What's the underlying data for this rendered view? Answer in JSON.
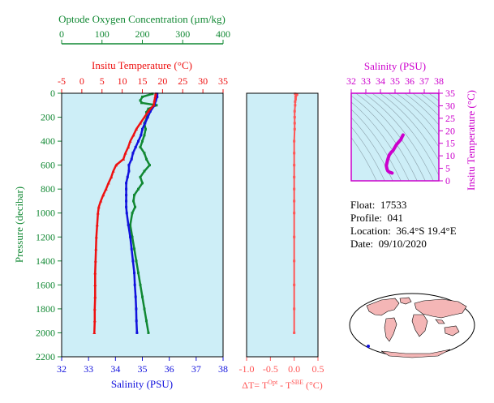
{
  "colors": {
    "temperature": "#ee1111",
    "salinity": "#1111dd",
    "oxygen": "#118833",
    "salinity_panel": "#cc00cc",
    "dt_panel": "#ff5555",
    "pressure_axis": "#118833",
    "panel_bg": "#cdeef7",
    "land": "#f4b6b6",
    "ocean": "#ffffff"
  },
  "main_panel": {
    "oxygen_axis": {
      "title": "Optode Oxygen Concentration (µm/kg)",
      "ticks": [
        "0",
        "100",
        "200",
        "300",
        "400"
      ]
    },
    "temperature_axis": {
      "title": "Insitu Temperature (°C)",
      "ticks": [
        "-5",
        "0",
        "5",
        "10",
        "15",
        "20",
        "25",
        "30",
        "35"
      ]
    },
    "salinity_axis": {
      "title": "Salinity (PSU)",
      "ticks": [
        "32",
        "33",
        "34",
        "35",
        "36",
        "37",
        "38"
      ]
    },
    "pressure_axis": {
      "title": "Pressure (decibar)",
      "ticks": [
        "0",
        "200",
        "400",
        "600",
        "800",
        "1000",
        "1200",
        "1400",
        "1600",
        "1800",
        "2000",
        "2200"
      ]
    }
  },
  "dt_panel": {
    "xlabel": "ΔT= T",
    "xlabel_sup1": "Opt",
    "xlabel_mid": " - T",
    "xlabel_sup2": "SBE",
    "xlabel_unit": " (°C)",
    "ticks": [
      "-1.0",
      "-0.5",
      "0.0",
      "0.5"
    ]
  },
  "ts_panel": {
    "title": "Salinity (PSU)",
    "x_ticks": [
      "32",
      "33",
      "34",
      "35",
      "36",
      "37",
      "38"
    ],
    "y_ticks": [
      "0",
      "5",
      "10",
      "15",
      "20",
      "25",
      "30",
      "35"
    ],
    "ylabel": "Insitu Temperature (°C)"
  },
  "info": {
    "float_label": "Float:",
    "float_value": "17533",
    "profile_label": "Profile:",
    "profile_value": "041",
    "location_label": "Location:",
    "location_value": "36.4°S  19.4°E",
    "date_label": "Date:",
    "date_value": "09/10/2020"
  },
  "map": {
    "symbol": "world-map",
    "marker": "float-position-marker"
  },
  "chart_data": [
    {
      "type": "line",
      "name": "profile",
      "ylim": [
        2200,
        0
      ],
      "temperature_xlim": [
        -5,
        35
      ],
      "salinity_xlim": [
        32,
        38
      ],
      "oxygen_xlim": [
        0,
        400
      ],
      "temperature": {
        "pressure": [
          5,
          30,
          60,
          100,
          150,
          200,
          250,
          300,
          350,
          400,
          450,
          500,
          550,
          600,
          650,
          700,
          750,
          800,
          850,
          900,
          950,
          1000,
          1100,
          1200,
          1300,
          1400,
          1500,
          1600,
          1700,
          1800,
          1900,
          2000
        ],
        "values": [
          18.3,
          18.2,
          18.0,
          17.8,
          16.5,
          15.5,
          14.5,
          13.5,
          12.8,
          12.0,
          11.5,
          10.8,
          10.3,
          8.5,
          7.8,
          7.3,
          6.6,
          6.0,
          5.3,
          4.7,
          4.2,
          4.0,
          3.8,
          3.6,
          3.5,
          3.4,
          3.3,
          3.3,
          3.3,
          3.2,
          3.2,
          3.1
        ]
      },
      "salinity": {
        "pressure": [
          5,
          30,
          60,
          100,
          150,
          200,
          250,
          300,
          350,
          400,
          450,
          500,
          550,
          600,
          650,
          700,
          750,
          800,
          850,
          900,
          950,
          1000,
          1100,
          1200,
          1300,
          1400,
          1500,
          1600,
          1700,
          1800,
          1900,
          2000
        ],
        "values": [
          35.55,
          35.55,
          35.5,
          35.45,
          35.3,
          35.2,
          35.1,
          35.0,
          34.95,
          34.85,
          34.75,
          34.65,
          34.6,
          34.5,
          34.5,
          34.45,
          34.4,
          34.4,
          34.4,
          34.4,
          34.4,
          34.42,
          34.48,
          34.55,
          34.6,
          34.65,
          34.7,
          34.72,
          34.75,
          34.77,
          34.78,
          34.8
        ]
      },
      "oxygen": {
        "pressure": [
          5,
          30,
          60,
          80,
          100,
          130,
          160,
          200,
          250,
          300,
          350,
          400,
          450,
          500,
          550,
          600,
          650,
          700,
          750,
          800,
          850,
          900,
          950,
          1000,
          1100,
          1200,
          1300,
          1400,
          1500,
          1600,
          1700,
          1800,
          1900,
          2000
        ],
        "values": [
          225,
          200,
          195,
          198,
          235,
          215,
          210,
          212,
          205,
          208,
          205,
          200,
          195,
          205,
          210,
          218,
          205,
          195,
          200,
          190,
          180,
          178,
          182,
          175,
          170,
          175,
          180,
          185,
          190,
          195,
          200,
          205,
          210,
          215
        ]
      }
    },
    {
      "type": "scatter",
      "name": "temperature-difference",
      "xlim": [
        -1.0,
        0.5
      ],
      "ylim": [
        2200,
        0
      ],
      "pressure": [
        5,
        10,
        20,
        30,
        50,
        70,
        100,
        150,
        200,
        250,
        300,
        400,
        500,
        600,
        700,
        800,
        900,
        1000,
        1200,
        1400,
        1600,
        1800,
        2000
      ],
      "values": [
        0.02,
        0.06,
        0.04,
        0.03,
        0.03,
        0.02,
        0.02,
        0.01,
        0.01,
        0.01,
        0.01,
        0.0,
        0.0,
        0.0,
        0.0,
        0.0,
        0.0,
        0.0,
        0.0,
        0.0,
        0.0,
        0.0,
        0.0
      ]
    },
    {
      "type": "line",
      "name": "temperature-salinity",
      "xlim": [
        32,
        38
      ],
      "ylim": [
        0,
        35
      ],
      "salinity": [
        34.8,
        34.7,
        34.6,
        34.5,
        34.45,
        34.4,
        34.45,
        34.5,
        34.6,
        34.75,
        34.85,
        35.0,
        35.1,
        35.25,
        35.4,
        35.5,
        35.55
      ],
      "temperature": [
        3.1,
        3.3,
        3.5,
        4.0,
        4.7,
        6.0,
        7.3,
        8.5,
        10.3,
        11.5,
        12.0,
        13.5,
        14.5,
        15.5,
        16.5,
        17.8,
        18.3
      ]
    }
  ]
}
